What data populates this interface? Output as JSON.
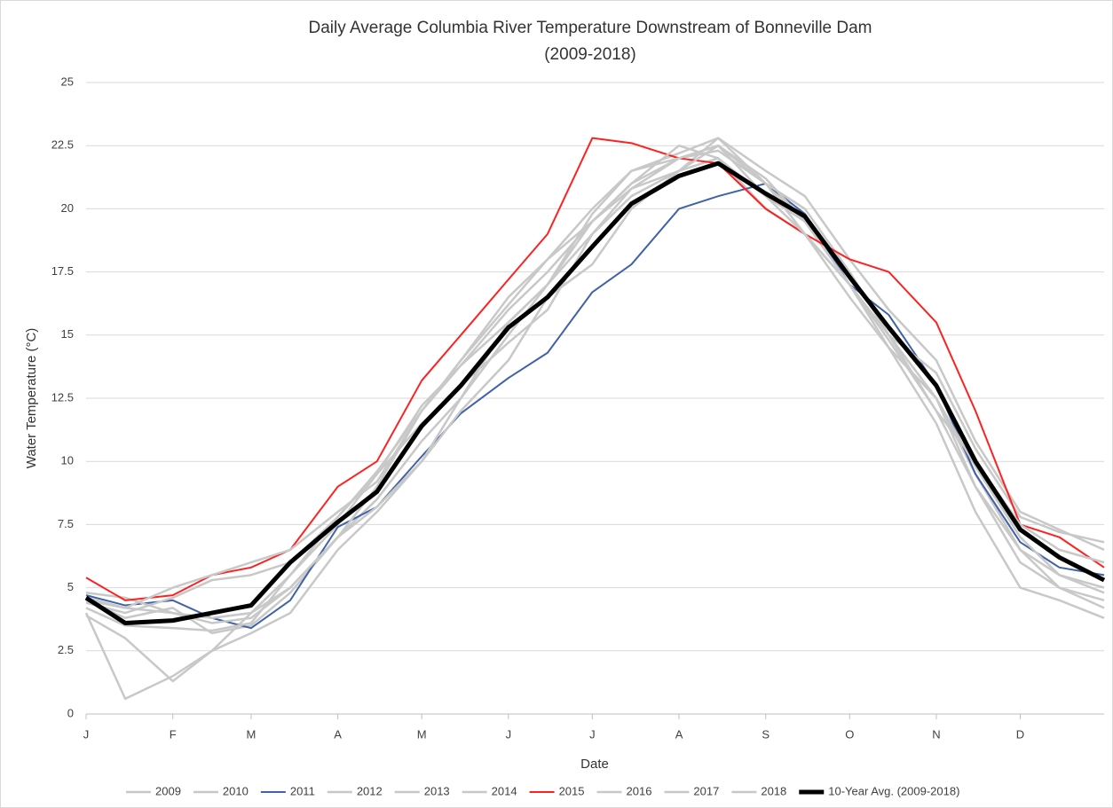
{
  "chart_data": {
    "type": "line",
    "title": "Daily Average Columbia River Temperature Downstream of Bonneville Dam",
    "subtitle": "(2009-2018)",
    "x_label": "Date",
    "y_label": "Water Temperature (°C)",
    "x": [
      1,
      15,
      32,
      46,
      60,
      74,
      91,
      105,
      121,
      135,
      152,
      166,
      182,
      196,
      213,
      227,
      244,
      258,
      274,
      288,
      305,
      319,
      335,
      349,
      365
    ],
    "xlim": [
      1,
      365
    ],
    "xticks": [
      {
        "value": 1,
        "label": "J"
      },
      {
        "value": 32,
        "label": "F"
      },
      {
        "value": 60,
        "label": "M"
      },
      {
        "value": 91,
        "label": "A"
      },
      {
        "value": 121,
        "label": "M"
      },
      {
        "value": 152,
        "label": "J"
      },
      {
        "value": 182,
        "label": "J"
      },
      {
        "value": 213,
        "label": "A"
      },
      {
        "value": 244,
        "label": "S"
      },
      {
        "value": 274,
        "label": "O"
      },
      {
        "value": 305,
        "label": "N"
      },
      {
        "value": 335,
        "label": "D"
      }
    ],
    "ylim": [
      0,
      25
    ],
    "yticks": [
      0,
      2.5,
      5,
      7.5,
      10,
      12.5,
      15,
      17.5,
      20,
      22.5,
      25
    ],
    "grid": true,
    "legend": "bottom",
    "series": [
      {
        "name": "2009",
        "color": "#c8c8c8",
        "width": 2.5,
        "values": [
          4.0,
          0.6,
          1.5,
          2.5,
          4.0,
          5.5,
          7.5,
          9.5,
          11.5,
          13.0,
          14.7,
          16.0,
          19.0,
          20.8,
          21.5,
          22.0,
          20.0,
          19.0,
          17.0,
          14.5,
          12.5,
          9.5,
          6.5,
          5.0,
          4.5
        ]
      },
      {
        "name": "2010",
        "color": "#c8c8c8",
        "width": 2.5,
        "values": [
          4.5,
          3.8,
          4.2,
          3.2,
          3.5,
          4.8,
          7.0,
          8.5,
          10.8,
          12.5,
          15.0,
          17.0,
          19.5,
          21.0,
          22.0,
          22.3,
          21.0,
          19.5,
          17.0,
          14.8,
          12.0,
          9.0,
          6.0,
          5.0,
          4.2
        ]
      },
      {
        "name": "2011",
        "color": "#3f62a8",
        "width": 2,
        "values": [
          4.7,
          4.3,
          4.5,
          3.8,
          3.4,
          4.5,
          7.4,
          8.2,
          10.2,
          11.9,
          13.3,
          14.3,
          16.7,
          17.8,
          20.0,
          20.5,
          21.0,
          19.8,
          17.0,
          15.8,
          13.0,
          9.5,
          6.8,
          5.8,
          5.5
        ]
      },
      {
        "name": "2012",
        "color": "#c8c8c8",
        "width": 2.5,
        "values": [
          4.8,
          4.6,
          4.0,
          3.8,
          4.0,
          5.0,
          7.0,
          8.2,
          10.0,
          12.0,
          14.0,
          16.5,
          17.8,
          20.0,
          21.5,
          22.8,
          21.0,
          20.0,
          17.5,
          15.0,
          13.5,
          10.5,
          7.8,
          7.2,
          6.8
        ]
      },
      {
        "name": "2013",
        "color": "#c8c8c8",
        "width": 2.5,
        "values": [
          4.2,
          3.5,
          3.4,
          3.3,
          3.6,
          5.5,
          7.8,
          9.6,
          12.0,
          13.8,
          16.0,
          17.5,
          19.5,
          20.8,
          22.0,
          22.5,
          20.5,
          19.5,
          17.0,
          15.0,
          12.5,
          9.8,
          7.0,
          5.5,
          4.8
        ]
      },
      {
        "name": "2014",
        "color": "#c8c8c8",
        "width": 2.5,
        "values": [
          4.4,
          4.0,
          4.6,
          5.3,
          5.5,
          6.0,
          7.8,
          9.5,
          12.2,
          13.8,
          15.5,
          17.0,
          19.8,
          21.5,
          22.2,
          22.8,
          21.5,
          20.5,
          18.0,
          16.0,
          14.0,
          10.8,
          8.0,
          7.3,
          6.5
        ]
      },
      {
        "name": "2015",
        "color": "#ff2020",
        "width": 2,
        "values": [
          5.4,
          4.5,
          4.7,
          5.5,
          5.8,
          6.5,
          9.0,
          10.0,
          13.2,
          15.0,
          17.2,
          19.0,
          22.8,
          22.6,
          22.0,
          21.8,
          20.0,
          19.0,
          18.0,
          17.5,
          15.5,
          12.0,
          7.5,
          7.0,
          5.8
        ]
      },
      {
        "name": "2016",
        "color": "#c8c8c8",
        "width": 2.5,
        "values": [
          4.6,
          4.2,
          5.0,
          5.5,
          6.0,
          6.5,
          8.0,
          9.2,
          12.0,
          14.0,
          16.5,
          18.0,
          19.5,
          21.0,
          22.5,
          22.0,
          20.5,
          19.0,
          16.5,
          14.5,
          12.5,
          9.0,
          6.5,
          5.5,
          5.0
        ]
      },
      {
        "name": "2017",
        "color": "#c8c8c8",
        "width": 2.5,
        "values": [
          3.9,
          3.0,
          1.3,
          2.5,
          3.2,
          4.0,
          6.5,
          8.0,
          10.0,
          12.5,
          15.5,
          17.0,
          19.0,
          20.5,
          21.5,
          22.5,
          21.2,
          19.5,
          17.5,
          15.0,
          12.0,
          10.0,
          7.5,
          6.5,
          6.0
        ]
      },
      {
        "name": "2018",
        "color": "#c8c8c8",
        "width": 2.5,
        "values": [
          4.5,
          4.2,
          4.0,
          3.6,
          3.8,
          5.0,
          7.0,
          9.0,
          12.0,
          14.0,
          16.2,
          18.0,
          20.0,
          21.5,
          22.0,
          22.5,
          21.0,
          19.0,
          17.0,
          14.5,
          11.5,
          8.0,
          5.0,
          4.5,
          3.8
        ]
      },
      {
        "name": "10-Year Avg. (2009-2018)",
        "color": "#000000",
        "width": 5,
        "values": [
          4.6,
          3.6,
          3.7,
          4.0,
          4.3,
          6.0,
          7.6,
          8.8,
          11.4,
          13.0,
          15.3,
          16.5,
          18.5,
          20.2,
          21.3,
          21.8,
          20.6,
          19.7,
          17.3,
          15.3,
          13.0,
          10.0,
          7.3,
          6.2,
          5.3
        ]
      }
    ]
  }
}
